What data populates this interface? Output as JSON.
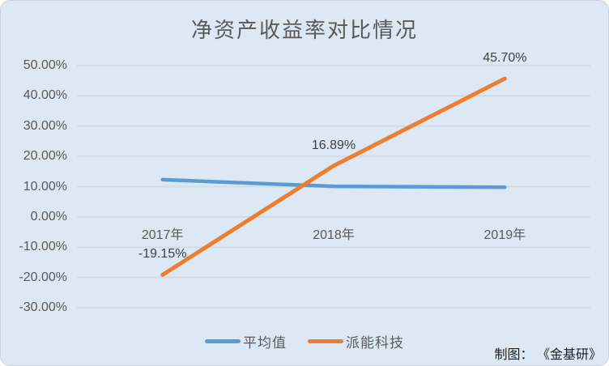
{
  "page": {
    "credit": "制图： 《金基研》"
  },
  "chart_data": {
    "type": "line",
    "title": "净资产收益率对比情况",
    "categories": [
      "2017年",
      "2018年",
      "2019年"
    ],
    "series": [
      {
        "name": "平均值",
        "color": "#5B9BD5",
        "values": [
          12.3,
          10.1,
          9.8
        ],
        "data_labels": null
      },
      {
        "name": "派能科技",
        "color": "#ED7D31",
        "values": [
          -19.15,
          16.89,
          45.7
        ],
        "data_labels": [
          "-19.15%",
          "16.89%",
          "45.70%"
        ]
      }
    ],
    "y_axis": {
      "min": -30,
      "max": 50,
      "step": 10,
      "tick_labels": [
        "50.00%",
        "40.00%",
        "30.00%",
        "20.00%",
        "10.00%",
        "0.00%",
        "-10.00%",
        "-20.00%",
        "-30.00%"
      ]
    },
    "xlabel": "",
    "ylabel": "",
    "grid": true,
    "legend_position": "bottom",
    "colors": {
      "background": "#DCE9F5",
      "gridline": "#D3DAE1",
      "tick_text": "#595959",
      "data_label_text": "#3F3F3F",
      "title_text": "#595959"
    }
  }
}
